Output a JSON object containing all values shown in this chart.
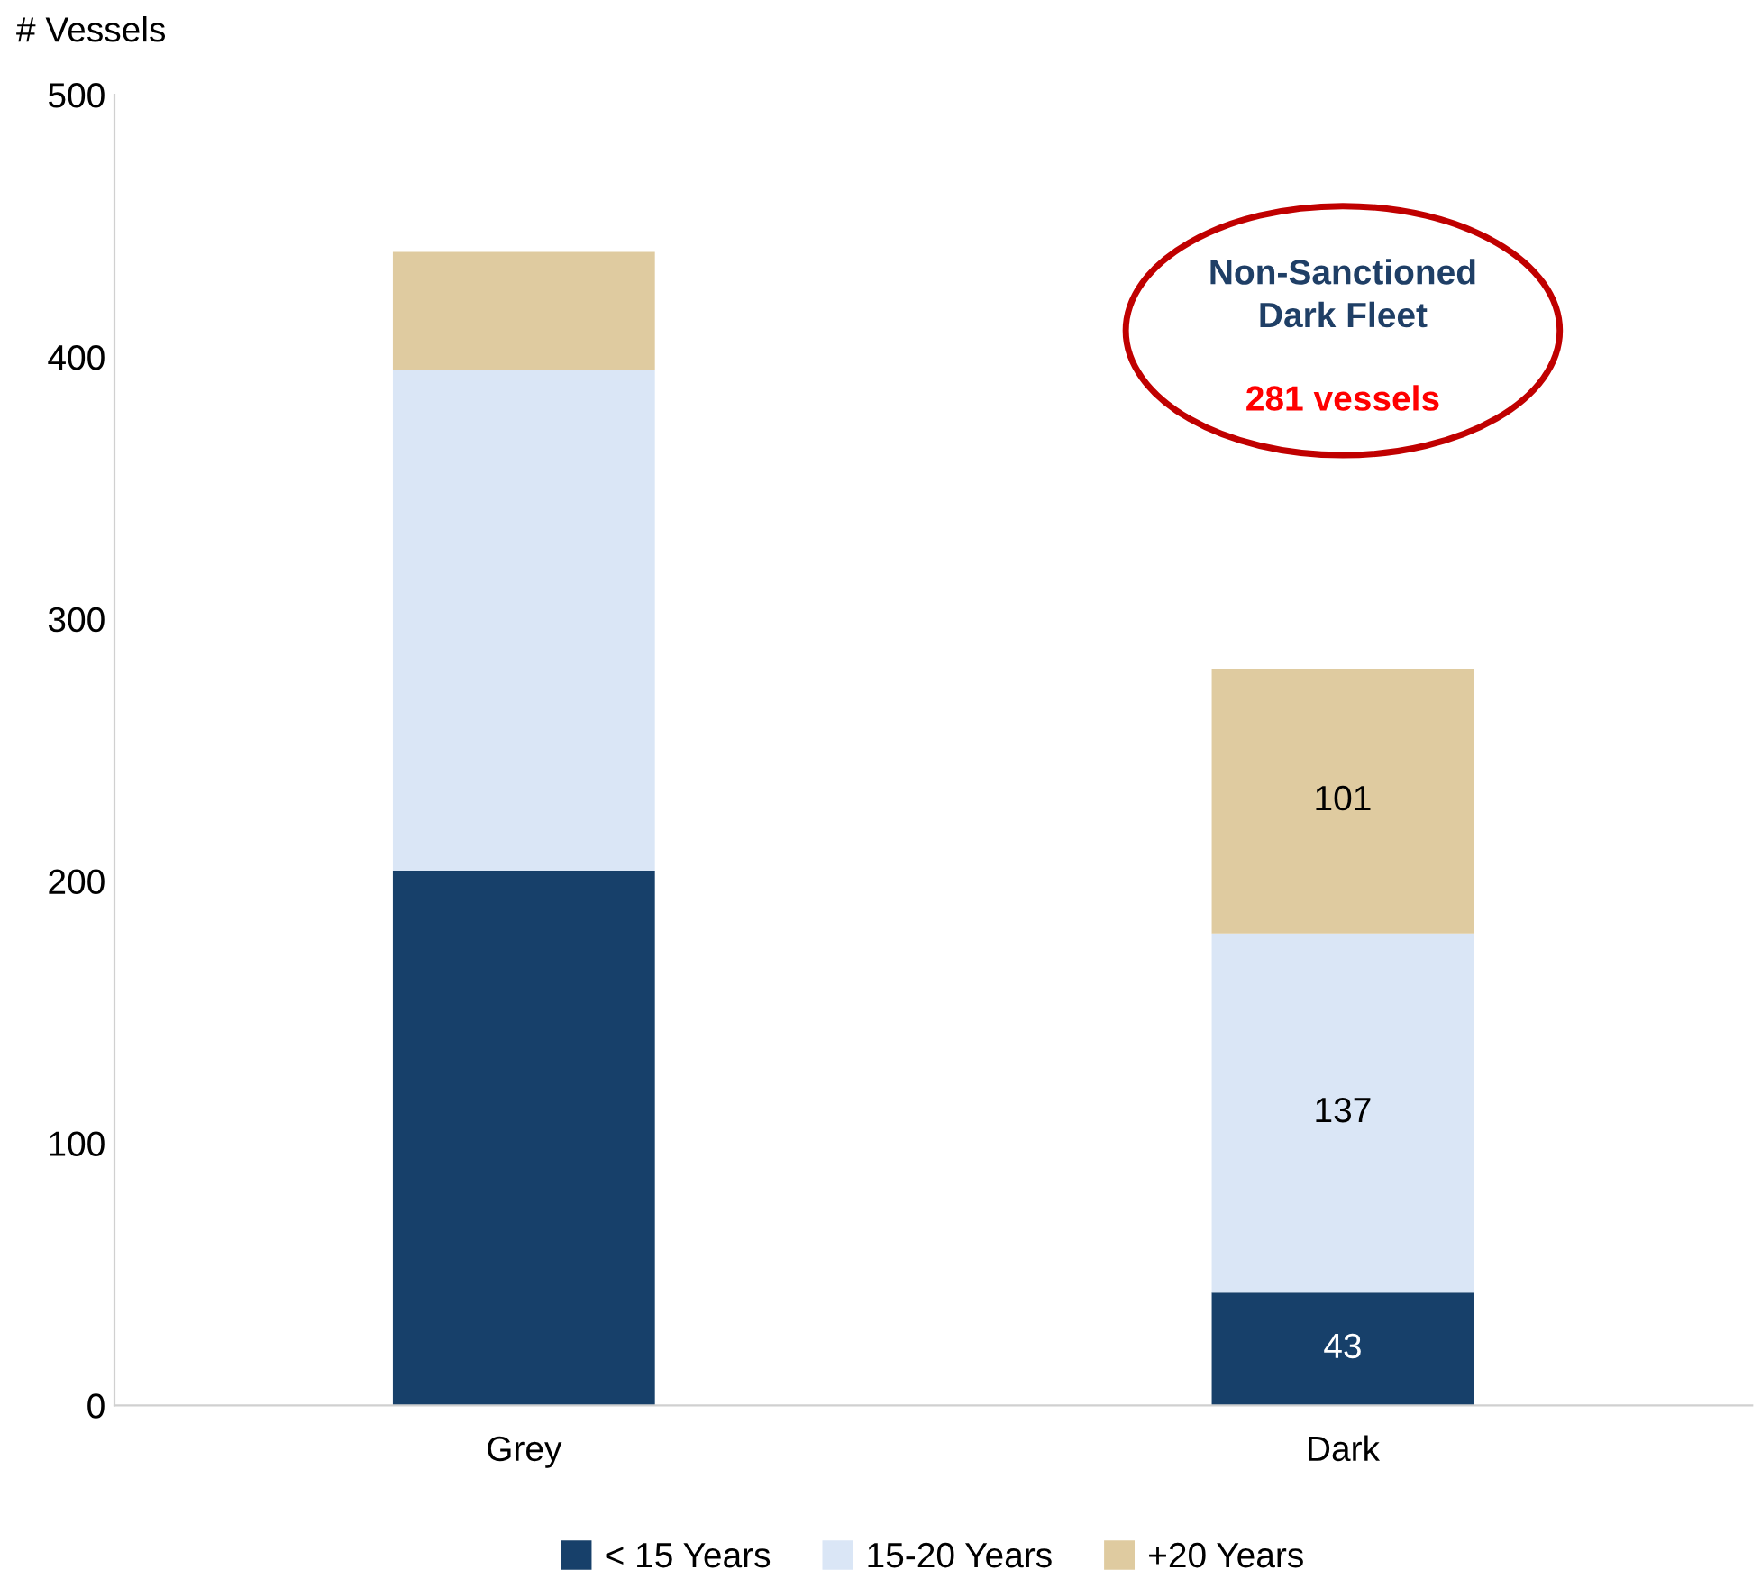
{
  "chart_data": {
    "type": "bar",
    "stacked": true,
    "ylabel": "# Vessels",
    "categories": [
      "Grey",
      "Dark"
    ],
    "series": [
      {
        "name": "< 15 Years",
        "color": "#17406a",
        "values": [
          204,
          43
        ],
        "value_labels": [
          null,
          "43"
        ]
      },
      {
        "name": "15-20 Years",
        "color": "#dae6f6",
        "values": [
          191,
          137
        ],
        "value_labels": [
          null,
          "137"
        ]
      },
      {
        "name": "+20 Years",
        "color": "#dfcba0",
        "values": [
          45,
          101
        ],
        "value_labels": [
          null,
          "101"
        ]
      }
    ],
    "ylim": [
      0,
      500
    ],
    "yticks": [
      0,
      100,
      200,
      300,
      400,
      500
    ],
    "grid": false,
    "legend": "bottom",
    "annotations": [
      "Non-Sanctioned\nDark Fleet",
      "281 vessels"
    ]
  }
}
